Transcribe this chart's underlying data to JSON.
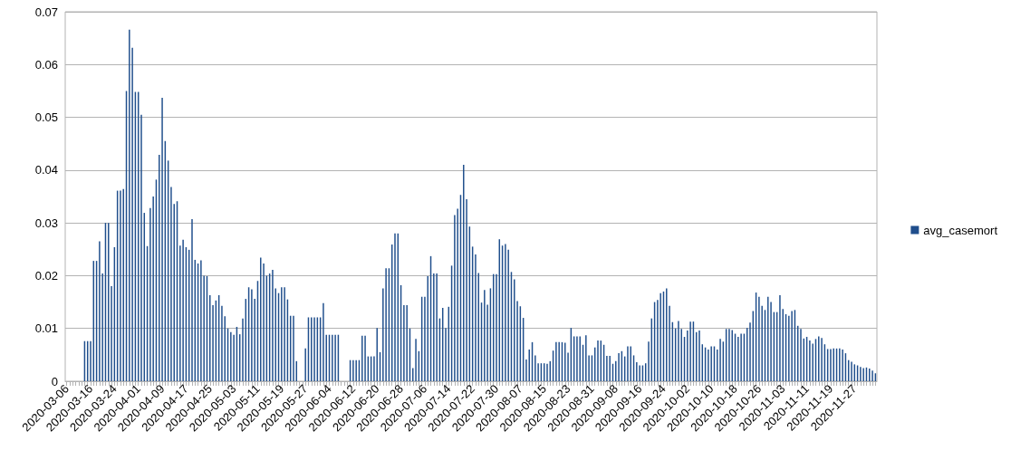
{
  "chart_data": {
    "type": "bar",
    "categories": [
      "2020-03-06",
      null,
      null,
      null,
      null,
      null,
      null,
      null,
      "2020-03-16",
      null,
      null,
      null,
      null,
      null,
      null,
      null,
      "2020-03-24",
      null,
      null,
      null,
      null,
      null,
      null,
      null,
      "2020-04-01",
      null,
      null,
      null,
      null,
      null,
      null,
      null,
      "2020-04-09",
      null,
      null,
      null,
      null,
      null,
      null,
      null,
      "2020-04-17",
      null,
      null,
      null,
      null,
      null,
      null,
      null,
      "2020-04-25",
      null,
      null,
      null,
      null,
      null,
      null,
      null,
      "2020-05-03",
      null,
      null,
      null,
      null,
      null,
      null,
      null,
      "2020-05-11",
      null,
      null,
      null,
      null,
      null,
      null,
      null,
      "2020-05-19",
      null,
      null,
      null,
      null,
      null,
      null,
      null,
      "2020-05-27",
      null,
      null,
      null,
      null,
      null,
      null,
      null,
      "2020-06-04",
      null,
      null,
      null,
      null,
      null,
      null,
      null,
      "2020-06-12",
      null,
      null,
      null,
      null,
      null,
      null,
      null,
      "2020-06-20",
      null,
      null,
      null,
      null,
      null,
      null,
      null,
      "2020-06-28",
      null,
      null,
      null,
      null,
      null,
      null,
      null,
      "2020-07-06",
      null,
      null,
      null,
      null,
      null,
      null,
      null,
      "2020-07-14",
      null,
      null,
      null,
      null,
      null,
      null,
      null,
      "2020-07-22",
      null,
      null,
      null,
      null,
      null,
      null,
      null,
      "2020-07-30",
      null,
      null,
      null,
      null,
      null,
      null,
      null,
      "2020-08-07",
      null,
      null,
      null,
      null,
      null,
      null,
      null,
      "2020-08-15",
      null,
      null,
      null,
      null,
      null,
      null,
      null,
      "2020-08-23",
      null,
      null,
      null,
      null,
      null,
      null,
      null,
      "2020-08-31",
      null,
      null,
      null,
      null,
      null,
      null,
      null,
      "2020-09-08",
      null,
      null,
      null,
      null,
      null,
      null,
      null,
      "2020-09-16",
      null,
      null,
      null,
      null,
      null,
      null,
      null,
      "2020-09-24",
      null,
      null,
      null,
      null,
      null,
      null,
      null,
      "2020-10-02",
      null,
      null,
      null,
      null,
      null,
      null,
      null,
      "2020-10-10",
      null,
      null,
      null,
      null,
      null,
      null,
      null,
      "2020-10-18",
      null,
      null,
      null,
      null,
      null,
      null,
      null,
      "2020-10-26",
      null,
      null,
      null,
      null,
      null,
      null,
      null,
      "2020-11-03",
      null,
      null,
      null,
      null,
      null,
      null,
      null,
      "2020-11-11",
      null,
      null,
      null,
      null,
      null,
      null,
      null,
      "2020-11-19",
      null,
      null,
      null,
      null,
      null,
      null,
      null,
      "2020-11-27",
      null,
      null,
      null,
      null,
      null,
      null,
      null
    ],
    "series": [
      {
        "name": "avg_casemort",
        "color": "#1f4e8c",
        "values": [
          0,
          0,
          0,
          0,
          0,
          0,
          0.0076,
          0.0076,
          0.0076,
          0.0228,
          0.0228,
          0.0265,
          0.0204,
          0.03,
          0.03,
          0.018,
          0.0254,
          0.0361,
          0.0361,
          0.0364,
          0.055,
          0.0666,
          0.0632,
          0.0548,
          0.0548,
          0.0505,
          0.0319,
          0.0256,
          0.0328,
          0.035,
          0.0382,
          0.0429,
          0.0537,
          0.0455,
          0.0418,
          0.0368,
          0.0336,
          0.0341,
          0.0257,
          0.0268,
          0.0254,
          0.0249,
          0.0307,
          0.023,
          0.0223,
          0.0229,
          0.02,
          0.0199,
          0.0163,
          0.0144,
          0.0153,
          0.0163,
          0.0143,
          0.0123,
          0.01,
          0.0093,
          0.0088,
          0.0103,
          0.0089,
          0.0119,
          0.0156,
          0.0178,
          0.0174,
          0.0156,
          0.019,
          0.0234,
          0.0223,
          0.02,
          0.0204,
          0.0211,
          0.0176,
          0.0167,
          0.0178,
          0.0178,
          0.0155,
          0.0124,
          0.0124,
          0.0038,
          0,
          0,
          0.0062,
          0.0121,
          0.0121,
          0.0121,
          0.0121,
          0.0121,
          0.0148,
          0.0088,
          0.0088,
          0.0088,
          0.0088,
          0.0088,
          0,
          0,
          0,
          0.004,
          0.004,
          0.004,
          0.004,
          0.0086,
          0.0086,
          0.0047,
          0.0047,
          0.0047,
          0.0101,
          0.0055,
          0.0176,
          0.0214,
          0.0214,
          0.0259,
          0.028,
          0.028,
          0.0182,
          0.0144,
          0.0144,
          0.01,
          0.0025,
          0.008,
          0.0057,
          0.016,
          0.016,
          0.0199,
          0.0237,
          0.0204,
          0.0204,
          0.0119,
          0.0139,
          0.0101,
          0.0141,
          0.0219,
          0.0315,
          0.0327,
          0.0353,
          0.041,
          0.0345,
          0.0293,
          0.0255,
          0.024,
          0.0205,
          0.0149,
          0.0173,
          0.0145,
          0.0176,
          0.0203,
          0.0203,
          0.0269,
          0.0257,
          0.026,
          0.0249,
          0.0207,
          0.0193,
          0.0152,
          0.0142,
          0.012,
          0.0041,
          0.006,
          0.0074,
          0.0049,
          0.0034,
          0.0034,
          0.0034,
          0.0033,
          0.0038,
          0.0058,
          0.0074,
          0.0074,
          0.0074,
          0.0073,
          0.0054,
          0.0101,
          0.0085,
          0.0085,
          0.0085,
          0.0069,
          0.0087,
          0.0049,
          0.0049,
          0.0064,
          0.0077,
          0.0077,
          0.0069,
          0.0048,
          0.0048,
          0.0033,
          0.0038,
          0.0053,
          0.0057,
          0.0047,
          0.0066,
          0.0066,
          0.0049,
          0.0036,
          0.003,
          0.003,
          0.0034,
          0.0075,
          0.0119,
          0.015,
          0.0154,
          0.0167,
          0.017,
          0.0176,
          0.0143,
          0.0112,
          0.01,
          0.0114,
          0.0099,
          0.0084,
          0.0096,
          0.0113,
          0.0113,
          0.0093,
          0.0096,
          0.007,
          0.0064,
          0.006,
          0.0066,
          0.0066,
          0.006,
          0.008,
          0.0075,
          0.0099,
          0.0099,
          0.0097,
          0.009,
          0.0084,
          0.009,
          0.009,
          0.0101,
          0.0111,
          0.0133,
          0.0168,
          0.016,
          0.0143,
          0.0135,
          0.016,
          0.015,
          0.0131,
          0.0131,
          0.0163,
          0.0137,
          0.0127,
          0.0124,
          0.0133,
          0.0135,
          0.0105,
          0.0099,
          0.0081,
          0.0084,
          0.0077,
          0.0071,
          0.008,
          0.0085,
          0.0082,
          0.007,
          0.0061,
          0.0061,
          0.0062,
          0.0062,
          0.0062,
          0.006,
          0.0053,
          0.004,
          0.0037,
          0.0032,
          0.003,
          0.0027,
          0.0025,
          0.0026,
          0.0024,
          0.002,
          0.0015
        ]
      }
    ],
    "ylim": [
      0,
      0.07
    ],
    "yticks": [
      0,
      0.01,
      0.02,
      0.03,
      0.04,
      0.05,
      0.06,
      0.07
    ],
    "grid": "y",
    "legend": "right"
  }
}
